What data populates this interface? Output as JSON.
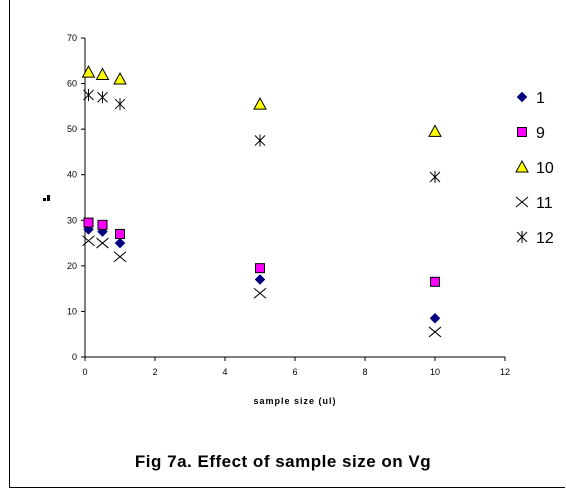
{
  "chart_data": {
    "type": "scatter",
    "xlabel": "sample size (ul)",
    "ylabel": "",
    "xlim": [
      0,
      12
    ],
    "ylim": [
      0,
      70
    ],
    "xticks": [
      0,
      2,
      4,
      6,
      8,
      10,
      12
    ],
    "yticks": [
      0,
      10,
      20,
      30,
      40,
      50,
      60,
      70
    ],
    "grid": false,
    "legend_position": "right",
    "series": [
      {
        "name": "1",
        "marker": "diamond",
        "color": "#000080",
        "x": [
          0.1,
          0.5,
          1,
          5,
          10
        ],
        "y": [
          28,
          27.5,
          25,
          17,
          8.5
        ]
      },
      {
        "name": "9",
        "marker": "square",
        "color": "#ff00ff",
        "x": [
          0.1,
          0.5,
          1,
          5,
          10
        ],
        "y": [
          29.5,
          29,
          27,
          19.5,
          16.5
        ]
      },
      {
        "name": "10",
        "marker": "triangle",
        "color": "#ffff00",
        "x": [
          0.1,
          0.5,
          1,
          5,
          10
        ],
        "y": [
          62.5,
          62,
          61,
          55.5,
          49.5
        ]
      },
      {
        "name": "11",
        "marker": "x",
        "color": "#000000",
        "x": [
          0.1,
          0.5,
          1,
          5,
          10
        ],
        "y": [
          25.5,
          25,
          22,
          14,
          5.5
        ]
      },
      {
        "name": "12",
        "marker": "asterisk",
        "color": "#000000",
        "x": [
          0.1,
          0.5,
          1,
          5,
          10
        ],
        "y": [
          57.5,
          57,
          55.5,
          47.5,
          39.5
        ]
      }
    ]
  },
  "caption": "Fig 7a. Effect of sample size on Vg"
}
